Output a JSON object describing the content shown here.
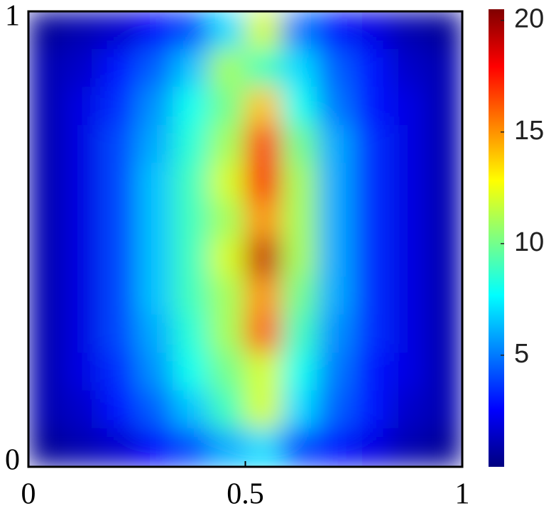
{
  "chart_data": {
    "type": "heatmap",
    "colormap": "jet",
    "x": [
      0.042,
      0.125,
      0.208,
      0.292,
      0.375,
      0.458,
      0.542,
      0.625,
      0.708,
      0.792,
      0.875,
      0.958
    ],
    "y": [
      0.958,
      0.875,
      0.792,
      0.708,
      0.625,
      0.542,
      0.458,
      0.375,
      0.292,
      0.208,
      0.125,
      0.042
    ],
    "z": [
      [
        0.5,
        1,
        1.5,
        2.5,
        4,
        7,
        12,
        5,
        3,
        2,
        1,
        0.5
      ],
      [
        1,
        1.5,
        3,
        4.5,
        6.5,
        11,
        9,
        7,
        4.5,
        3,
        1.5,
        1
      ],
      [
        1,
        2,
        3.5,
        5.5,
        8,
        10,
        14,
        8,
        5,
        3,
        2,
        1
      ],
      [
        1,
        2,
        4,
        6,
        8.5,
        11,
        17,
        10,
        6,
        3.5,
        2,
        1
      ],
      [
        1,
        2,
        4,
        6.5,
        9,
        12,
        18,
        11,
        6,
        3.5,
        2,
        1
      ],
      [
        1,
        2,
        4,
        6.5,
        9,
        11,
        15,
        11,
        6,
        3.5,
        2,
        1
      ],
      [
        1,
        2,
        4,
        6.5,
        9,
        12,
        19,
        11,
        6,
        3.5,
        2,
        1
      ],
      [
        1,
        2,
        4,
        6.5,
        9,
        11,
        15,
        10,
        6,
        3.5,
        2,
        1
      ],
      [
        1,
        2,
        4,
        6,
        8.5,
        11,
        16,
        9,
        5.5,
        3.5,
        2,
        1
      ],
      [
        1,
        2,
        3.5,
        5.5,
        8,
        10,
        12,
        8,
        5,
        3,
        2,
        1
      ],
      [
        1,
        1.5,
        3,
        4.5,
        6.5,
        9,
        12,
        7,
        4.5,
        3,
        1.5,
        1
      ],
      [
        0.5,
        1,
        1.5,
        2.5,
        4,
        6,
        7,
        4,
        3,
        2,
        1,
        0.5
      ]
    ],
    "xlim": [
      0,
      1
    ],
    "ylim": [
      0,
      1
    ],
    "xticks": [
      0,
      0.5,
      1
    ],
    "yticks": [
      0,
      1
    ],
    "clim": [
      0,
      20.5
    ],
    "cticks": [
      5,
      10,
      15,
      20
    ]
  }
}
